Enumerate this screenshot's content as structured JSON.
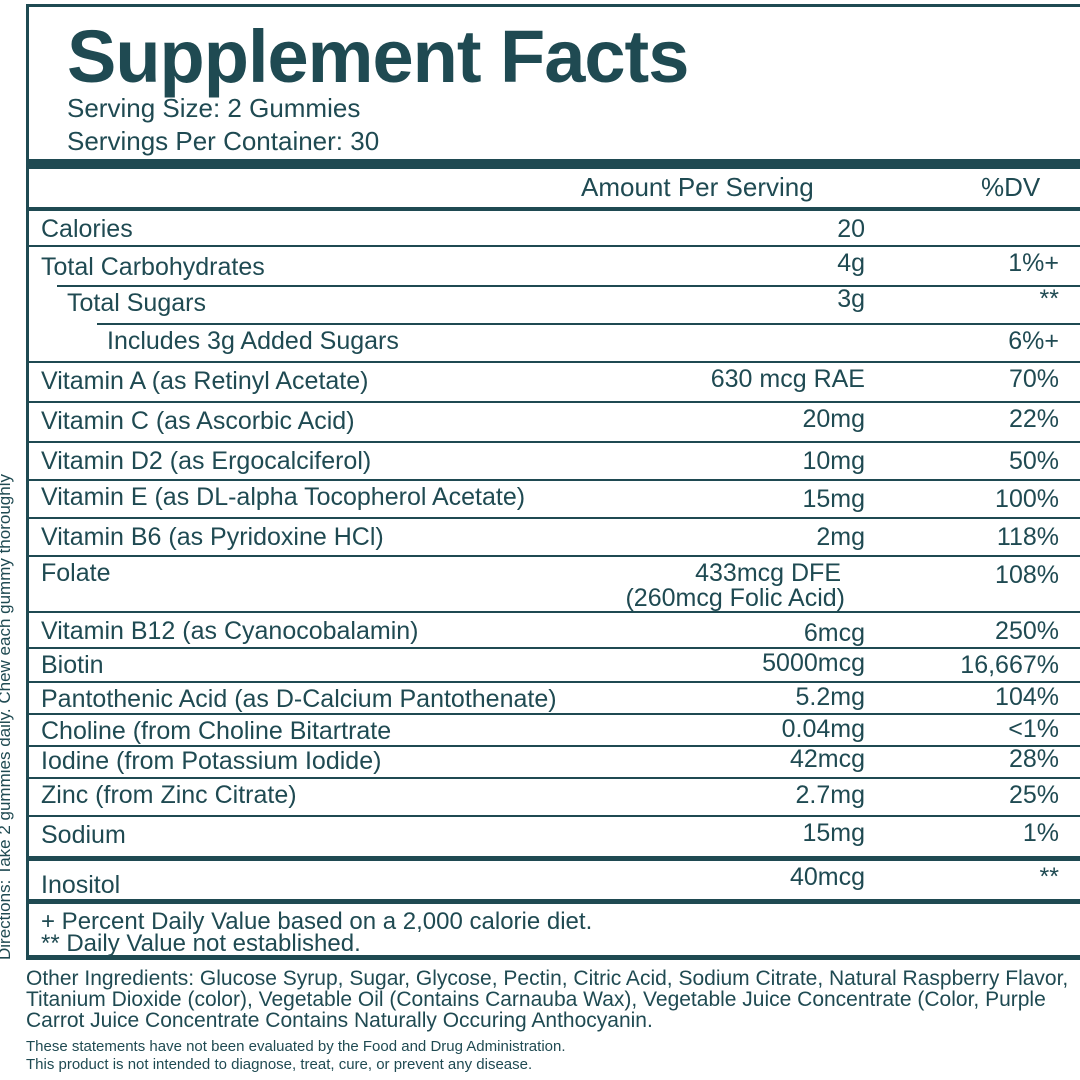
{
  "directions": "Directions: Take 2 gummies daily. Chew each gummy thoroughly",
  "header": {
    "title": "Supplement Facts",
    "serving_size": "Serving Size: 2 Gummies",
    "servings_per_container": "Servings Per Container: 30"
  },
  "columns": {
    "amount": "Amount Per Serving",
    "dv": "%DV"
  },
  "nutrients": [
    {
      "name": "Calories",
      "amount": "20",
      "dv": ""
    },
    {
      "name": "Total Carbohydrates",
      "amount": "4g",
      "dv": "1%+"
    },
    {
      "name": "Total Sugars",
      "amount": "3g",
      "dv": "**"
    },
    {
      "name": "Includes 3g Added Sugars",
      "amount": "",
      "dv": "6%+"
    },
    {
      "name": "Vitamin A (as Retinyl Acetate)",
      "amount": "630 mcg RAE",
      "dv": "70%"
    },
    {
      "name": "Vitamin C (as Ascorbic Acid)",
      "amount": "20mg",
      "dv": "22%"
    },
    {
      "name": "Vitamin D2 (as Ergocalciferol)",
      "amount": "10mg",
      "dv": "50%"
    },
    {
      "name": "Vitamin E (as DL-alpha Tocopherol Acetate)",
      "amount": "15mg",
      "dv": "100%"
    },
    {
      "name": "Vitamin B6 (as Pyridoxine HCl)",
      "amount": "2mg",
      "dv": "118%"
    },
    {
      "name": "Folate",
      "amount": "433mcg DFE",
      "amount2": "(260mcg Folic Acid)",
      "dv": "108%"
    },
    {
      "name": "Vitamin B12 (as Cyanocobalamin)",
      "amount": "6mcg",
      "dv": "250%"
    },
    {
      "name": "Biotin",
      "amount": "5000mcg",
      "dv": "16,667%"
    },
    {
      "name": "Pantothenic Acid (as D-Calcium Pantothenate)",
      "amount": "5.2mg",
      "dv": "104%"
    },
    {
      "name": "Choline (from Choline Bitartrate",
      "amount": "0.04mg",
      "dv": "<1%"
    },
    {
      "name": "Iodine (from Potassium Iodide)",
      "amount": "42mcg",
      "dv": "28%"
    },
    {
      "name": "Zinc (from Zinc Citrate)",
      "amount": "2.7mg",
      "dv": "25%"
    },
    {
      "name": "Sodium",
      "amount": "15mg",
      "dv": "1%"
    }
  ],
  "other_nutrient": {
    "name": "Inositol",
    "amount": "40mcg",
    "dv": "**"
  },
  "footnotes": {
    "line1": "+ Percent Daily Value based on a 2,000 calorie diet.",
    "line2": "** Daily Value not established."
  },
  "other_ingredients": "Other Ingredients: Glucose Syrup, Sugar, Glycose, Pectin, Citric Acid, Sodium Citrate, Natural Raspberry Flavor, Titanium Dioxide (color), Vegetable Oil (Contains Carnauba Wax), Vegetable Juice Concentrate (Color, Purple Carrot Juice Concentrate Contains Naturally Occuring Anthocyanin.",
  "disclaimer": {
    "line1": "These statements have not been evaluated by the Food and Drug Administration.",
    "line2": "This product is not intended to diagnose, treat, cure, or prevent any disease."
  },
  "colors": {
    "ink": "#1f4a52",
    "background": "#ffffff"
  }
}
